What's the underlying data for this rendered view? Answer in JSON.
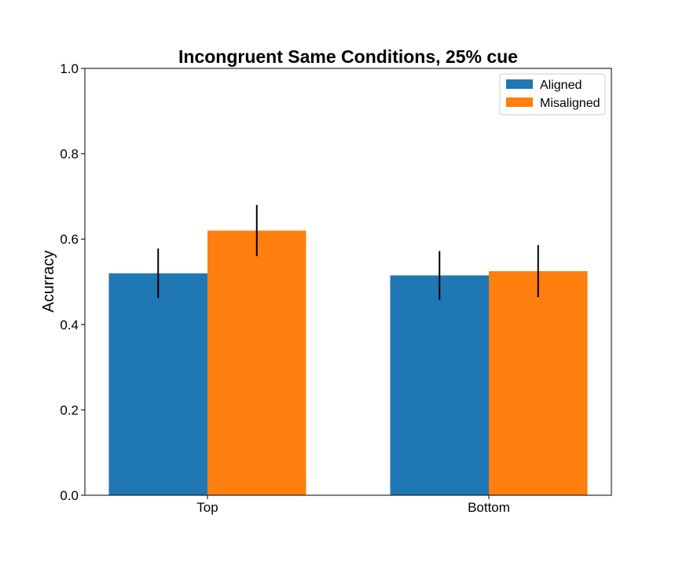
{
  "chart_data": {
    "type": "bar",
    "title": "Incongruent Same Conditions, 25% cue",
    "xlabel": "",
    "ylabel": "Acurracy",
    "categories": [
      "Top",
      "Bottom"
    ],
    "ylim": [
      0,
      1.0
    ],
    "yticks": [
      "0.0",
      "0.2",
      "0.4",
      "0.6",
      "0.8",
      "1.0"
    ],
    "grid": false,
    "legend_position": "top-right",
    "series": [
      {
        "name": "Aligned",
        "color": "#1f77b4",
        "values": [
          0.52,
          0.515
        ],
        "errors": [
          0.058,
          0.057
        ]
      },
      {
        "name": "Misaligned",
        "color": "#ff7f0e",
        "values": [
          0.62,
          0.525
        ],
        "errors": [
          0.06,
          0.061
        ]
      }
    ]
  }
}
